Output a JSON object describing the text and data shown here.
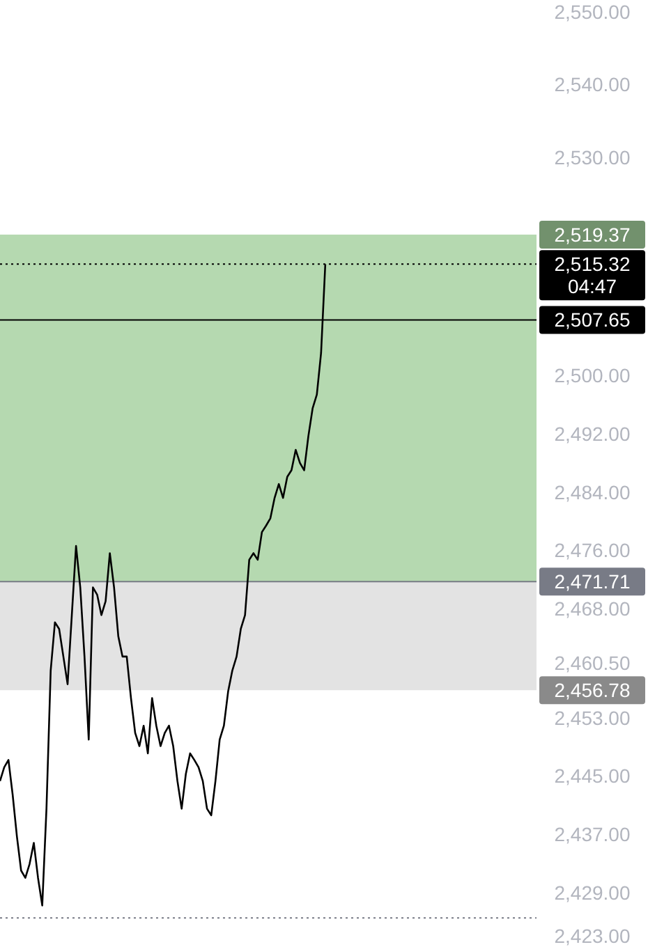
{
  "chart_data": {
    "type": "line",
    "categories": [
      null,
      null,
      null,
      null,
      null,
      null,
      null,
      null,
      null,
      null,
      null,
      null,
      null,
      null,
      null,
      null,
      null,
      null,
      null,
      null,
      null,
      null,
      null,
      null,
      null,
      null,
      null,
      null,
      null,
      null,
      null,
      null,
      null,
      null,
      null,
      null,
      null,
      null,
      null,
      null,
      null,
      null,
      null,
      null,
      null,
      null,
      null,
      null,
      null,
      null,
      null,
      null,
      null,
      null,
      null,
      null,
      null,
      null,
      null,
      null,
      null,
      null,
      null,
      null,
      null,
      null,
      null,
      null,
      null,
      null,
      null,
      null,
      null,
      null,
      null,
      null,
      null,
      null,
      null,
      null,
      null,
      null,
      null,
      null,
      null,
      null,
      null,
      null,
      null,
      null,
      null,
      null,
      null,
      null,
      null,
      null,
      null,
      null,
      null,
      null,
      null,
      null,
      null,
      null,
      null,
      null,
      null,
      null,
      null,
      null,
      null,
      null,
      null,
      null,
      null,
      null,
      null,
      null,
      null,
      null,
      null,
      null,
      null,
      null,
      null,
      null,
      null,
      null
    ],
    "series": [
      {
        "color": "#000000",
        "values": [
          2444.3,
          2446.2,
          2447.2,
          2442.4,
          2436.7,
          2432.0,
          2431.0,
          2432.9,
          2435.8,
          2431.0,
          2427.2,
          2440.5,
          2459.5,
          2466.1,
          2465.2,
          2461.4,
          2457.6,
          2467.1,
          2476.6,
          2470.9,
          2461.4,
          2450.0,
          2470.9,
          2469.9,
          2467.1,
          2469.0,
          2475.6,
          2470.9,
          2464.2,
          2461.4,
          2461.4,
          2455.7,
          2450.9,
          2449.1,
          2451.9,
          2448.1,
          2455.7,
          2451.9,
          2449.1,
          2450.9,
          2451.9,
          2449.1,
          2444.3,
          2440.5,
          2445.3,
          2448.1,
          2447.2,
          2446.2,
          2444.3,
          2440.5,
          2439.6,
          2444.3,
          2450.0,
          2451.9,
          2456.6,
          2459.5,
          2461.4,
          2465.2,
          2467.1,
          2474.7,
          2475.6,
          2474.7,
          2478.5,
          2479.4,
          2480.4,
          2483.2,
          2485.1,
          2483.2,
          2486.1,
          2487.0,
          2489.8,
          2488.0,
          2487.0,
          2491.7,
          2495.5,
          2497.4,
          2503.1,
          2515.3,
          null,
          null,
          null,
          null,
          null,
          null,
          null,
          null,
          null,
          null,
          null,
          null,
          null,
          null,
          null,
          null,
          null,
          null,
          null,
          null,
          null,
          null,
          null,
          null,
          null,
          null,
          null,
          null,
          null,
          null,
          null,
          null,
          null,
          null,
          null,
          null,
          null,
          null,
          null,
          null,
          null,
          null,
          null,
          null,
          null,
          null,
          null,
          null,
          null,
          null
        ]
      }
    ],
    "ylim": [
      2421.5,
      2551.6
    ],
    "yticks": [
      {
        "value": 2423,
        "label": "2,423.00"
      },
      {
        "value": 2429,
        "label": "2,429.00"
      },
      {
        "value": 2437,
        "label": "2,437.00"
      },
      {
        "value": 2445,
        "label": "2,445.00"
      },
      {
        "value": 2453,
        "label": "2,453.00"
      },
      {
        "value": 2460.5,
        "label": "2,460.50"
      },
      {
        "value": 2468,
        "label": "2,468.00"
      },
      {
        "value": 2476,
        "label": "2,476.00"
      },
      {
        "value": 2484,
        "label": "2,484.00"
      },
      {
        "value": 2492,
        "label": "2,492.00"
      },
      {
        "value": 2500,
        "label": "2,500.00"
      },
      {
        "value": 2530,
        "label": "2,530.00"
      },
      {
        "value": 2540,
        "label": "2,540.00"
      },
      {
        "value": 2550,
        "label": "2,550.00"
      }
    ],
    "bands": [
      {
        "axis": "y",
        "from": 2471.71,
        "to": 2519.37,
        "label": "2,519.37",
        "color": "#a3cf9c"
      },
      {
        "axis": "y",
        "from": 2456.78,
        "to": 2471.71,
        "label": "2,456.78",
        "color": "#dcdcdc"
      }
    ],
    "ref_lines": [
      {
        "axis": "y",
        "value": 2515.32,
        "label": "2,515.32",
        "color": "#000000",
        "line_style": "dotted"
      },
      {
        "axis": "y",
        "value": 2507.65,
        "label": "2,507.65",
        "color": "#000000",
        "line_style": "solid"
      },
      {
        "axis": "y",
        "value": 2471.71,
        "label": "2,471.71",
        "color": "#787b86",
        "line_style": "solid"
      },
      {
        "axis": "y",
        "value": 2425.5,
        "label": null,
        "color": "#787b86",
        "line_style": "dotted"
      }
    ],
    "annotations": [
      "04:47"
    ],
    "grid": false,
    "line_style": "solid"
  }
}
